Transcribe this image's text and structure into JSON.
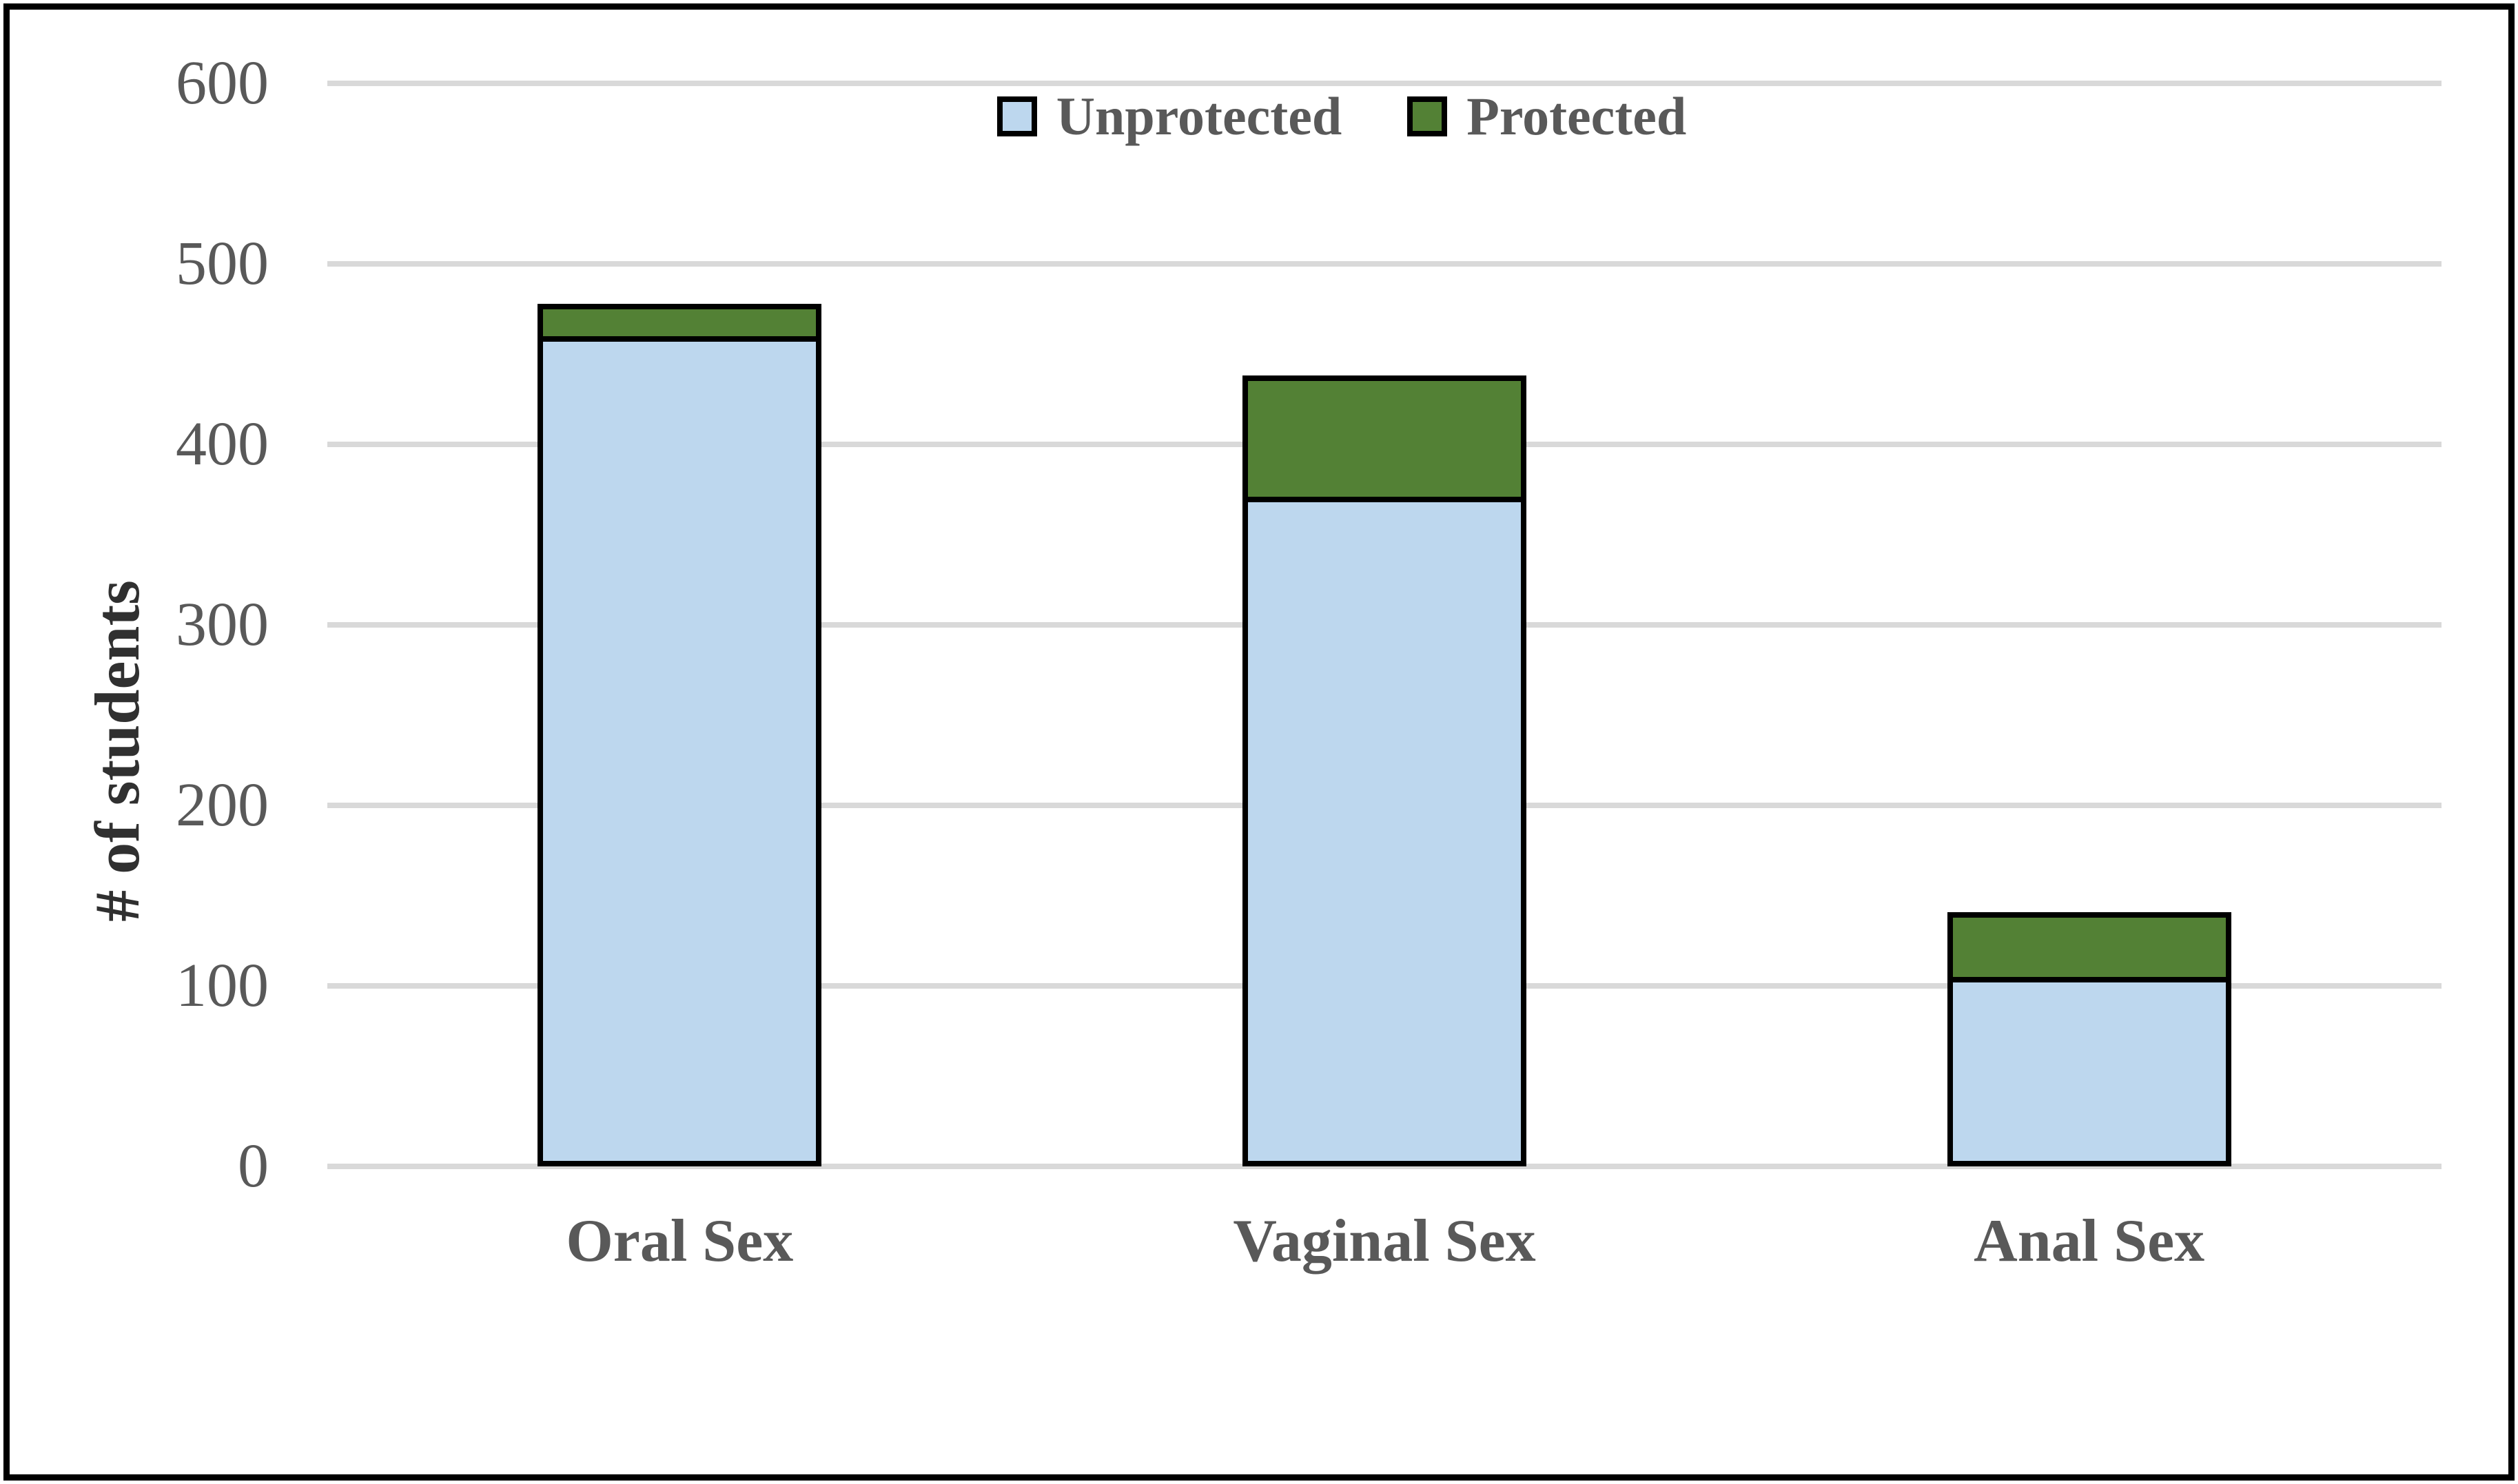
{
  "chart_data": {
    "type": "bar",
    "stacked": true,
    "title": "",
    "categories": [
      "Oral Sex",
      "Vaginal Sex",
      "Anal Sex"
    ],
    "series": [
      {
        "name": "Unprotected",
        "values": [
          460,
          371,
          105
        ],
        "color": "#BDD7EE"
      },
      {
        "name": "Protected",
        "values": [
          18,
          67,
          36
        ],
        "color": "#538135"
      }
    ],
    "xlabel": "",
    "ylabel": "# of students",
    "ylim": [
      0,
      600
    ],
    "ytick_step": 100,
    "yticks": [
      0,
      100,
      200,
      300,
      400,
      500,
      600
    ],
    "grid": true,
    "legend_position": "top-center",
    "colors": {
      "segment_border": "#000000",
      "gridline": "#D9D9D9",
      "tick_text": "#595959",
      "category_text": "#595959",
      "legend_text": "#595959",
      "axis_title_text": "#303030",
      "frame_border": "#000000",
      "background": "#FFFFFF"
    }
  }
}
